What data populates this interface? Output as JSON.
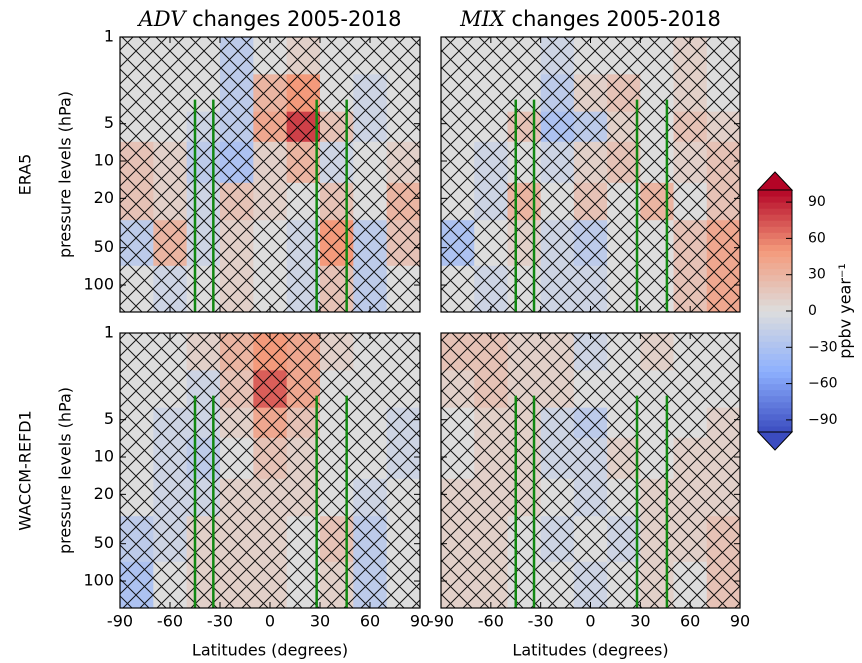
{
  "chart_data": [
    {
      "type": "contour",
      "title_var": "ADV",
      "title": "changes 2005-2018",
      "row_label": "ERA5",
      "ylabel": "pressure levels (hPa)",
      "xlim": [
        -90,
        90
      ],
      "xticks": [
        -90,
        -60,
        -30,
        0,
        30,
        60,
        90
      ],
      "ylim": [
        1,
        165
      ],
      "yticks": [
        1,
        5,
        10,
        20,
        50,
        100
      ],
      "log_y": true,
      "lat_edges": [
        -90,
        -70,
        -50,
        -30,
        -10,
        10,
        30,
        50,
        70,
        90
      ],
      "pressure_edges": [
        1,
        2,
        4,
        7,
        15,
        30,
        70,
        165
      ],
      "values": [
        [
          0,
          0,
          0,
          -20,
          0,
          10,
          0,
          0,
          0
        ],
        [
          0,
          0,
          0,
          -20,
          30,
          50,
          0,
          -10,
          0
        ],
        [
          0,
          0,
          -10,
          -20,
          40,
          80,
          20,
          -10,
          0
        ],
        [
          20,
          10,
          -20,
          -30,
          10,
          30,
          -10,
          0,
          10
        ],
        [
          20,
          10,
          -10,
          20,
          10,
          0,
          20,
          0,
          30
        ],
        [
          -20,
          30,
          -10,
          10,
          0,
          -10,
          50,
          -20,
          20
        ],
        [
          0,
          -10,
          0,
          10,
          0,
          -10,
          20,
          -20,
          0
        ]
      ],
      "vertical_lines": [
        -45,
        -34,
        28,
        46
      ],
      "vertical_line_top": 3.2,
      "vertical_line_color": "#118811",
      "hatch": true
    },
    {
      "type": "contour",
      "title_var": "MIX",
      "title": "changes 2005-2018",
      "xlim": [
        -90,
        90
      ],
      "xticks": [
        -90,
        -60,
        -30,
        0,
        30,
        60,
        90
      ],
      "ylim": [
        1,
        165
      ],
      "yticks": [
        1,
        5,
        10,
        20,
        50,
        100
      ],
      "log_y": true,
      "lat_edges": [
        -90,
        -70,
        -50,
        -30,
        -10,
        10,
        30,
        50,
        70,
        90
      ],
      "pressure_edges": [
        1,
        2,
        4,
        7,
        15,
        30,
        70,
        165
      ],
      "values": [
        [
          0,
          0,
          0,
          -10,
          0,
          0,
          0,
          10,
          0
        ],
        [
          0,
          0,
          0,
          -20,
          10,
          20,
          0,
          10,
          0
        ],
        [
          0,
          0,
          20,
          -30,
          -20,
          10,
          0,
          20,
          10
        ],
        [
          0,
          -10,
          0,
          -10,
          10,
          20,
          0,
          10,
          20
        ],
        [
          0,
          -10,
          30,
          0,
          20,
          0,
          30,
          0,
          20
        ],
        [
          -30,
          0,
          10,
          -10,
          -20,
          0,
          0,
          20,
          40
        ],
        [
          0,
          -10,
          0,
          -10,
          -10,
          0,
          0,
          20,
          40
        ]
      ],
      "vertical_lines": [
        -45,
        -34,
        28,
        46
      ],
      "vertical_line_top": 3.2,
      "vertical_line_color": "#118811",
      "hatch": true
    },
    {
      "type": "contour",
      "row_label": "WACCM-REFD1",
      "ylabel": "pressure levels (hPa)",
      "xlabel": "Latitudes (degrees)",
      "xlim": [
        -90,
        90
      ],
      "xticks": [
        -90,
        -60,
        -30,
        0,
        30,
        60,
        90
      ],
      "ylim": [
        1,
        165
      ],
      "yticks": [
        1,
        5,
        10,
        20,
        50,
        100
      ],
      "log_y": true,
      "lat_edges": [
        -90,
        -70,
        -50,
        -30,
        -10,
        10,
        30,
        50,
        70,
        90
      ],
      "pressure_edges": [
        1,
        2,
        4,
        7,
        15,
        30,
        70,
        165
      ],
      "values": [
        [
          0,
          0,
          10,
          30,
          50,
          40,
          10,
          0,
          0
        ],
        [
          0,
          0,
          -10,
          20,
          70,
          40,
          0,
          0,
          0
        ],
        [
          0,
          -10,
          -10,
          10,
          40,
          20,
          0,
          0,
          -10
        ],
        [
          0,
          -10,
          -20,
          0,
          20,
          10,
          0,
          0,
          -10
        ],
        [
          0,
          -10,
          -10,
          10,
          10,
          10,
          0,
          -10,
          0
        ],
        [
          -20,
          -10,
          10,
          10,
          10,
          0,
          20,
          -20,
          0
        ],
        [
          -30,
          0,
          10,
          10,
          10,
          0,
          10,
          -20,
          0
        ]
      ],
      "vertical_lines": [
        -45,
        -34,
        28,
        46
      ],
      "vertical_line_top": 3.2,
      "vertical_line_color": "#118811",
      "hatch": true
    },
    {
      "type": "contour",
      "xlabel": "Latitudes (degrees)",
      "xlim": [
        -90,
        90
      ],
      "xticks": [
        -90,
        -60,
        -30,
        0,
        30,
        60,
        90
      ],
      "ylim": [
        1,
        165
      ],
      "yticks": [
        1,
        5,
        10,
        20,
        50,
        100
      ],
      "log_y": true,
      "lat_edges": [
        -90,
        -70,
        -50,
        -30,
        -10,
        10,
        30,
        50,
        70,
        90
      ],
      "pressure_edges": [
        1,
        2,
        4,
        7,
        15,
        30,
        70,
        165
      ],
      "values": [
        [
          20,
          20,
          10,
          10,
          -10,
          0,
          10,
          0,
          0
        ],
        [
          10,
          20,
          10,
          10,
          0,
          0,
          0,
          0,
          0
        ],
        [
          0,
          10,
          10,
          -10,
          -20,
          0,
          0,
          0,
          10
        ],
        [
          0,
          10,
          10,
          -10,
          -10,
          10,
          0,
          10,
          10
        ],
        [
          10,
          10,
          10,
          0,
          -10,
          0,
          10,
          10,
          10
        ],
        [
          10,
          10,
          0,
          -10,
          0,
          -10,
          10,
          10,
          20
        ],
        [
          10,
          10,
          0,
          0,
          -10,
          0,
          10,
          0,
          20
        ]
      ],
      "vertical_lines": [
        -45,
        -34,
        28,
        46
      ],
      "vertical_line_top": 3.2,
      "vertical_line_color": "#118811",
      "hatch": true
    },
    {
      "type": "colorbar",
      "colormap": "coolwarm",
      "label": "ppbv year⁻¹",
      "lim": [
        -100,
        100
      ],
      "ticks": [
        {
          "value": -90,
          "label": "−90"
        },
        {
          "value": -60,
          "label": "−60"
        },
        {
          "value": -30,
          "label": "−30"
        },
        0,
        30,
        60,
        90
      ]
    }
  ]
}
